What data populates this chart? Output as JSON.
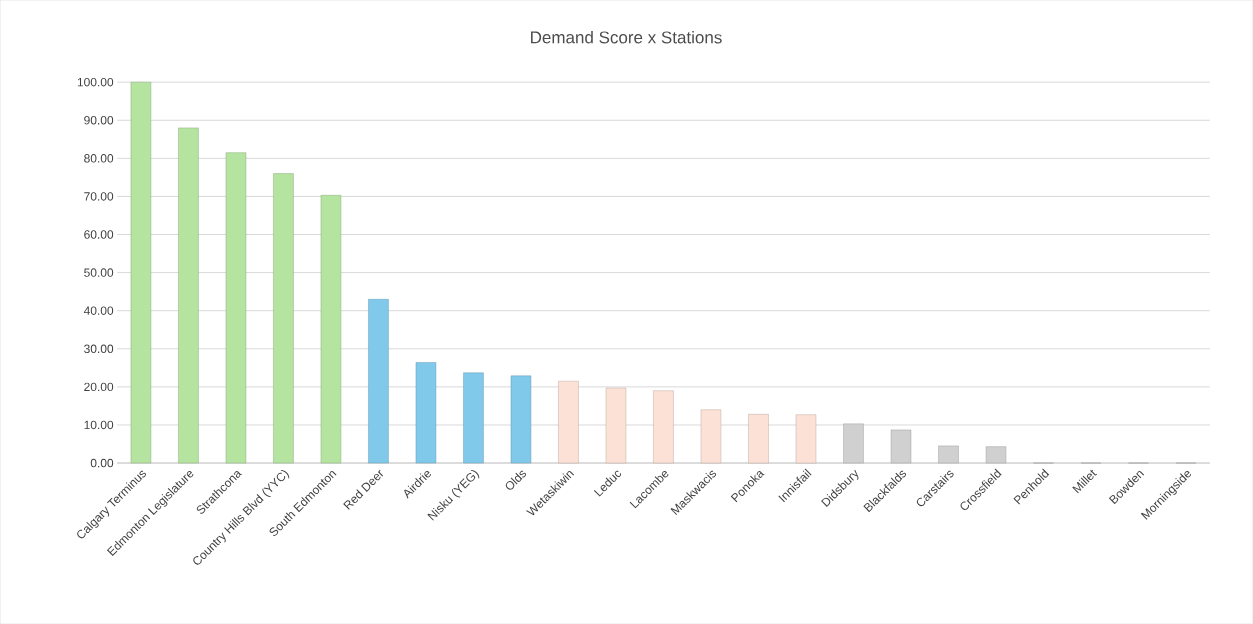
{
  "chart_data": {
    "type": "bar",
    "title": "Demand Score x Stations",
    "categories": [
      "Calgary Terminus",
      "Edmonton Legislature",
      "Strathcona",
      "Country Hills Blvd (YYC)",
      "South Edmonton",
      "Red Deer",
      "Airdrie",
      "Nisku (YEG)",
      "Olds",
      "Wetaskiwin",
      "Leduc",
      "Lacombe",
      "Maskwacis",
      "Ponoka",
      "Innisfail",
      "Didsbury",
      "Blackfalds",
      "Carstairs",
      "Crossfield",
      "Penhold",
      "Millet",
      "Bowden",
      "Morningside"
    ],
    "values": [
      100,
      88,
      81.5,
      76,
      70.3,
      43,
      26.4,
      23.7,
      22.9,
      21.5,
      19.7,
      19,
      14,
      12.8,
      12.7,
      10.3,
      8.7,
      4.5,
      4.3,
      0,
      0,
      0,
      0
    ],
    "colors": [
      "#b5e3a0",
      "#b5e3a0",
      "#b5e3a0",
      "#b5e3a0",
      "#b5e3a0",
      "#80c9ea",
      "#80c9ea",
      "#80c9ea",
      "#80c9ea",
      "#fce1d6",
      "#fce1d6",
      "#fce1d6",
      "#fce1d6",
      "#fce1d6",
      "#fce1d6",
      "#d0d0d0",
      "#d0d0d0",
      "#d0d0d0",
      "#d0d0d0",
      "#d0d0d0",
      "#d0d0d0",
      "#d0d0d0",
      "#d0d0d0"
    ],
    "ylim": [
      0,
      100
    ],
    "yticks": [
      {
        "value": 0,
        "label": "0.00"
      },
      {
        "value": 10,
        "label": "10.00"
      },
      {
        "value": 20,
        "label": "20.00"
      },
      {
        "value": 30,
        "label": "30.00"
      },
      {
        "value": 40,
        "label": "40.00"
      },
      {
        "value": 50,
        "label": "50.00"
      },
      {
        "value": 60,
        "label": "60.00"
      },
      {
        "value": 70,
        "label": "70.00"
      },
      {
        "value": 80,
        "label": "80.00"
      },
      {
        "value": 90,
        "label": "90.00"
      },
      {
        "value": 100,
        "label": "100.00"
      }
    ],
    "grid": "y"
  }
}
